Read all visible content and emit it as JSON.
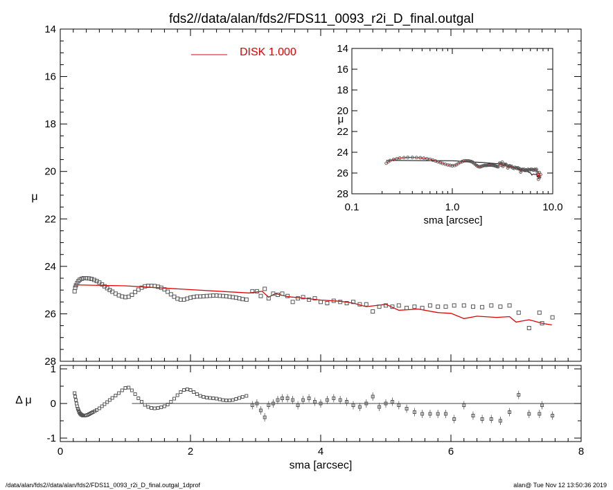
{
  "title": "fds2//data/alan/fds2/FDS11_0093_r2i_D_final.outgal",
  "footer_left": "/data/alan/fds2//data/alan/fds2/FDS11_0093_r2i_D_final.outgal_1dprof",
  "footer_right": "alan@  Tue Nov 12 13:50:36 2019",
  "colors": {
    "model": "#e00000",
    "data": "#555555",
    "axes": "#000000"
  },
  "chart_data": [
    {
      "panel": "main",
      "type": "scatter",
      "xlabel": "sma [arcsec]",
      "ylabel": "μ",
      "xlim": [
        0,
        8
      ],
      "ylim": [
        28,
        14
      ],
      "xticks": [
        "0",
        "2",
        "4",
        "6",
        "8"
      ],
      "yticks": [
        "14",
        "16",
        "18",
        "20",
        "22",
        "24",
        "26",
        "28"
      ],
      "legend": {
        "label": "DISK  1.000",
        "position": "top-center"
      },
      "series": [
        {
          "name": "DISK  1.000",
          "kind": "line",
          "x": [
            0.22,
            1.0,
            2.0,
            2.9,
            3.1,
            3.2,
            3.3,
            3.5,
            3.7,
            4.0,
            4.3,
            4.5,
            4.7,
            5.0,
            5.2,
            5.5,
            5.8,
            6.0,
            6.2,
            6.4,
            6.7,
            6.9,
            7.0,
            7.2,
            7.4,
            7.55
          ],
          "y": [
            24.78,
            24.82,
            24.98,
            25.12,
            25.05,
            25.3,
            25.15,
            25.28,
            25.33,
            25.42,
            25.47,
            25.55,
            25.7,
            25.6,
            25.85,
            25.8,
            25.95,
            25.98,
            26.2,
            26.1,
            26.15,
            26.12,
            26.35,
            26.25,
            26.4,
            26.47
          ]
        },
        {
          "kind": "points",
          "x": [
            0.22,
            0.23,
            0.24,
            0.26,
            0.28,
            0.3,
            0.33,
            0.36,
            0.4,
            0.44,
            0.48,
            0.52,
            0.56,
            0.6,
            0.64,
            0.68,
            0.72,
            0.76,
            0.8,
            0.85,
            0.9,
            0.95,
            1.0,
            1.05,
            1.1,
            1.15,
            1.2,
            1.25,
            1.3,
            1.35,
            1.4,
            1.45,
            1.5,
            1.55,
            1.6,
            1.65,
            1.7,
            1.75,
            1.8,
            1.85,
            1.9,
            1.95,
            2.0,
            2.05,
            2.1,
            2.15,
            2.2,
            2.25,
            2.3,
            2.35,
            2.4,
            2.45,
            2.5,
            2.55,
            2.6,
            2.65,
            2.7,
            2.75,
            2.8,
            2.86,
            2.95,
            3.02,
            3.08,
            3.14,
            3.2,
            3.27,
            3.34,
            3.41,
            3.49,
            3.57,
            3.65,
            3.73,
            3.82,
            3.91,
            4.0,
            4.1,
            4.2,
            4.3,
            4.4,
            4.5,
            4.6,
            4.7,
            4.8,
            4.9,
            5.0,
            5.1,
            5.2,
            5.32,
            5.44,
            5.56,
            5.68,
            5.8,
            5.92,
            6.05,
            6.2,
            6.34,
            6.48,
            6.62,
            6.76,
            6.9,
            7.04,
            7.2,
            7.36,
            7.4,
            7.56
          ],
          "y": [
            25.05,
            24.9,
            24.8,
            24.7,
            24.62,
            24.56,
            24.52,
            24.5,
            24.5,
            24.51,
            24.53,
            24.57,
            24.62,
            24.68,
            24.76,
            24.84,
            24.92,
            25.0,
            25.07,
            25.15,
            25.22,
            25.27,
            25.3,
            25.28,
            25.2,
            25.08,
            24.98,
            24.9,
            24.84,
            24.82,
            24.82,
            24.83,
            24.86,
            24.9,
            24.97,
            25.07,
            25.18,
            25.28,
            25.36,
            25.4,
            25.4,
            25.36,
            25.32,
            25.29,
            25.27,
            25.27,
            25.26,
            25.25,
            25.24,
            25.23,
            25.23,
            25.24,
            25.25,
            25.26,
            25.28,
            25.3,
            25.32,
            25.35,
            25.38,
            25.4,
            25.05,
            25.05,
            25.25,
            24.95,
            25.35,
            25.15,
            25.2,
            25.15,
            25.25,
            25.5,
            25.35,
            25.3,
            25.4,
            25.35,
            25.5,
            25.55,
            25.45,
            25.5,
            25.55,
            25.5,
            25.6,
            25.6,
            25.9,
            25.7,
            25.65,
            25.7,
            25.65,
            25.75,
            25.7,
            25.75,
            25.65,
            25.7,
            25.7,
            25.65,
            25.65,
            25.7,
            25.72,
            25.65,
            25.7,
            25.65,
            25.95,
            26.6,
            25.95,
            26.4,
            26.15
          ]
        }
      ]
    },
    {
      "panel": "residual",
      "type": "scatter",
      "xlabel": "sma [arcsec]",
      "ylabel": "Δ μ",
      "xlim": [
        0,
        8
      ],
      "ylim": [
        -1.1,
        1.1
      ],
      "yticks": [
        "1",
        "0",
        "-1"
      ],
      "zero_line": true,
      "series": [
        {
          "kind": "points",
          "x": [
            0.22,
            0.23,
            0.24,
            0.25,
            0.26,
            0.27,
            0.28,
            0.29,
            0.3,
            0.31,
            0.32,
            0.33,
            0.34,
            0.35,
            0.36,
            0.38,
            0.4,
            0.42,
            0.44,
            0.46,
            0.48,
            0.5,
            0.53,
            0.56,
            0.6,
            0.64,
            0.68,
            0.72,
            0.76,
            0.8,
            0.85,
            0.9,
            0.95,
            1.0,
            1.05,
            1.1,
            1.15,
            1.2,
            1.25,
            1.3,
            1.35,
            1.4,
            1.45,
            1.5,
            1.55,
            1.6,
            1.65,
            1.7,
            1.75,
            1.8,
            1.85,
            1.9,
            1.95,
            2.0,
            2.05,
            2.1,
            2.15,
            2.2,
            2.25,
            2.3,
            2.35,
            2.4,
            2.45,
            2.5,
            2.55,
            2.6,
            2.65,
            2.7,
            2.75,
            2.8,
            2.86,
            2.95,
            3.02,
            3.08,
            3.14,
            3.2,
            3.27,
            3.34,
            3.41,
            3.49,
            3.57,
            3.65,
            3.73,
            3.82,
            3.91,
            4.0,
            4.1,
            4.2,
            4.3,
            4.4,
            4.5,
            4.6,
            4.7,
            4.8,
            4.9,
            5.0,
            5.1,
            5.2,
            5.32,
            5.44,
            5.56,
            5.68,
            5.8,
            5.92,
            6.05,
            6.2,
            6.34,
            6.48,
            6.62,
            6.76,
            6.9,
            7.04,
            7.2,
            7.36,
            7.4,
            7.56
          ],
          "y": [
            0.3,
            0.2,
            0.1,
            0.0,
            -0.08,
            -0.15,
            -0.2,
            -0.25,
            -0.28,
            -0.3,
            -0.32,
            -0.33,
            -0.34,
            -0.35,
            -0.35,
            -0.35,
            -0.34,
            -0.33,
            -0.31,
            -0.29,
            -0.27,
            -0.25,
            -0.22,
            -0.19,
            -0.14,
            -0.08,
            -0.02,
            0.04,
            0.1,
            0.16,
            0.23,
            0.3,
            0.38,
            0.45,
            0.46,
            0.38,
            0.27,
            0.15,
            0.05,
            -0.04,
            -0.1,
            -0.13,
            -0.14,
            -0.13,
            -0.11,
            -0.08,
            -0.03,
            0.05,
            0.14,
            0.24,
            0.33,
            0.39,
            0.41,
            0.39,
            0.33,
            0.27,
            0.22,
            0.19,
            0.17,
            0.16,
            0.15,
            0.14,
            0.12,
            0.1,
            0.09,
            0.09,
            0.1,
            0.13,
            0.16,
            0.19,
            0.22,
            -0.05,
            0.0,
            -0.2,
            -0.4,
            -0.05,
            0.0,
            0.1,
            0.15,
            0.15,
            0.1,
            -0.05,
            0.1,
            0.15,
            0.05,
            0.0,
            0.1,
            0.15,
            0.1,
            0.05,
            -0.05,
            -0.1,
            0.0,
            0.2,
            -0.1,
            0.0,
            0.05,
            -0.05,
            -0.15,
            -0.25,
            -0.3,
            -0.3,
            -0.3,
            -0.3,
            -0.45,
            -0.05,
            -0.35,
            -0.45,
            -0.45,
            -0.5,
            -0.25,
            0.25,
            -0.3,
            -0.3,
            -0.05,
            -0.35
          ]
        }
      ]
    },
    {
      "panel": "inset",
      "type": "line",
      "xlabel": "sma [arcsec]",
      "ylabel": "μ",
      "xscale": "log",
      "xlim": [
        0.1,
        10.0
      ],
      "ylim": [
        28,
        14
      ],
      "xticks": [
        "0.1",
        "1.0",
        "10.0"
      ],
      "yticks": [
        "14",
        "16",
        "18",
        "20",
        "22",
        "24",
        "26",
        "28"
      ]
    }
  ]
}
